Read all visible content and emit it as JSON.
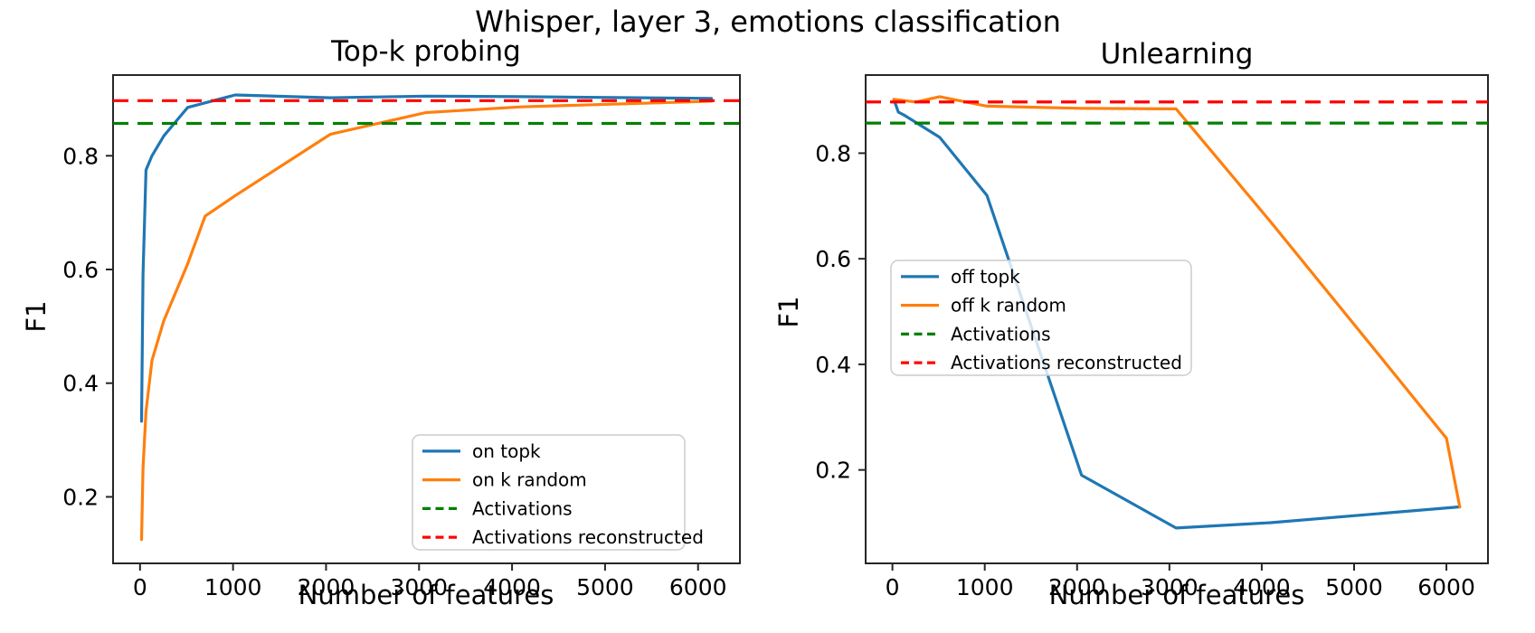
{
  "figure": {
    "title": "Whisper, layer 3, emotions classification"
  },
  "colors": {
    "blue": "#1f77b4",
    "orange": "#ff7f0e",
    "green": "#008000",
    "red": "#ff0000",
    "spine": "#262626",
    "legend_border": "#cccccc",
    "legend_fill": "rgba(255,255,255,0.8)"
  },
  "chart_data": [
    {
      "id": "topk-probing",
      "type": "line",
      "title": "Top-k probing",
      "xlabel": "Number of features",
      "ylabel": "F1",
      "xlim": [
        -290,
        6450
      ],
      "ylim": [
        0.083,
        0.942
      ],
      "xticks": [
        0,
        1000,
        2000,
        3000,
        4000,
        5000,
        6000
      ],
      "xtick_labels": [
        "0",
        "1000",
        "2000",
        "3000",
        "4000",
        "5000",
        "6000"
      ],
      "yticks": [
        0.2,
        0.4,
        0.6,
        0.8
      ],
      "ytick_labels": [
        "0.2",
        "0.4",
        "0.6",
        "0.8"
      ],
      "grid": false,
      "legend_position": "lower right",
      "series": [
        {
          "name": "on topk",
          "color": "blue",
          "style": "solid",
          "x": [
            16,
            32,
            64,
            128,
            256,
            512,
            1024,
            2048,
            3072,
            4096,
            6144
          ],
          "y": [
            0.333,
            0.59,
            0.775,
            0.8,
            0.835,
            0.885,
            0.907,
            0.902,
            0.905,
            0.904,
            0.901
          ]
        },
        {
          "name": "on k random",
          "color": "orange",
          "style": "solid",
          "x": [
            16,
            32,
            64,
            128,
            256,
            512,
            700,
            1024,
            2048,
            3072,
            4096,
            6144
          ],
          "y": [
            0.125,
            0.25,
            0.35,
            0.44,
            0.51,
            0.61,
            0.694,
            0.73,
            0.838,
            0.876,
            0.886,
            0.896
          ]
        },
        {
          "name": "Activations",
          "color": "green",
          "style": "dashed",
          "hline": 0.857
        },
        {
          "name": "Activations reconstructed",
          "color": "red",
          "style": "dashed",
          "hline": 0.897
        }
      ]
    },
    {
      "id": "unlearning",
      "type": "line",
      "title": "Unlearning",
      "xlabel": "Number of features",
      "ylabel": "F1",
      "xlim": [
        -290,
        6450
      ],
      "ylim": [
        0.023,
        0.948
      ],
      "xticks": [
        0,
        1000,
        2000,
        3000,
        4000,
        5000,
        6000
      ],
      "xtick_labels": [
        "0",
        "1000",
        "2000",
        "3000",
        "4000",
        "5000",
        "6000"
      ],
      "yticks": [
        0.2,
        0.4,
        0.6,
        0.8
      ],
      "ytick_labels": [
        "0.2",
        "0.4",
        "0.6",
        "0.8"
      ],
      "grid": false,
      "legend_position": "center left",
      "series": [
        {
          "name": "off topk",
          "color": "blue",
          "style": "solid",
          "x": [
            16,
            64,
            128,
            256,
            512,
            1024,
            2048,
            3072,
            4096,
            6144
          ],
          "y": [
            0.902,
            0.878,
            0.872,
            0.858,
            0.83,
            0.72,
            0.19,
            0.09,
            0.1,
            0.13
          ]
        },
        {
          "name": "off k random",
          "color": "orange",
          "style": "solid",
          "x": [
            16,
            256,
            512,
            1024,
            2048,
            3072,
            4096,
            5120,
            6000,
            6144
          ],
          "y": [
            0.902,
            0.897,
            0.907,
            0.889,
            0.885,
            0.884,
            0.67,
            0.45,
            0.26,
            0.13
          ]
        },
        {
          "name": "Activations",
          "color": "green",
          "style": "dashed",
          "hline": 0.857
        },
        {
          "name": "Activations reconstructed",
          "color": "red",
          "style": "dashed",
          "hline": 0.897
        }
      ]
    }
  ]
}
